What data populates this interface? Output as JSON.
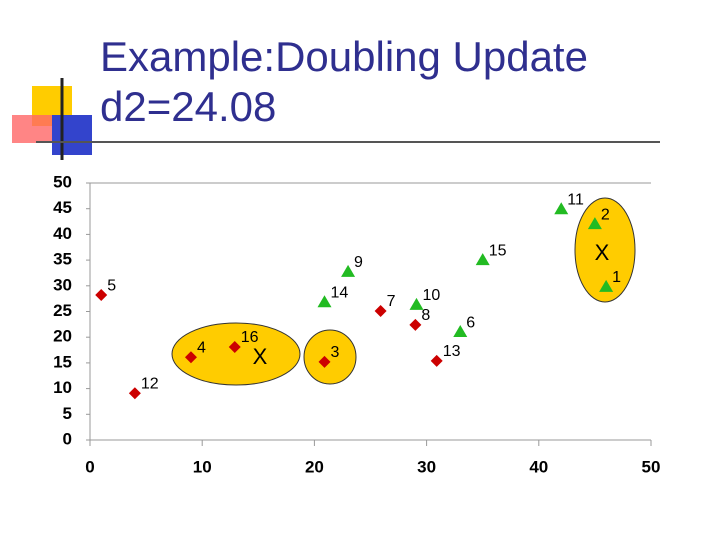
{
  "chart_data": {
    "type": "scatter",
    "title_lines": [
      "Example:Doubling Update",
      "d2=24.08"
    ],
    "xlim": [
      0,
      50
    ],
    "xticks": [
      0,
      10,
      20,
      30,
      40,
      50
    ],
    "ylim": [
      0,
      50
    ],
    "yticks": [
      0,
      5,
      10,
      15,
      20,
      25,
      30,
      35,
      40,
      45,
      50
    ],
    "series": [
      {
        "color": "#cc0000",
        "marker": "diamond",
        "x": [
          1,
          4,
          9,
          12.9,
          20.9,
          25.9,
          29,
          30.9
        ],
        "values": [
          28.2,
          9.1,
          16.1,
          18.1,
          15.2,
          25.1,
          22.4,
          15.4
        ],
        "point_labels": [
          "5",
          "12",
          "4",
          "16",
          "3",
          "7",
          "8",
          "13"
        ]
      },
      {
        "color": "#22bb22",
        "marker": "triangle",
        "x": [
          23,
          20.9,
          29.1,
          35,
          33,
          42,
          45,
          46
        ],
        "values": [
          32.7,
          26.8,
          26.3,
          35,
          21,
          44.9,
          42,
          29.8
        ],
        "point_labels": [
          "9",
          "14",
          "10",
          "15",
          "6",
          "11",
          "2",
          "1"
        ]
      }
    ],
    "annotations": [
      "X",
      "X"
    ]
  }
}
